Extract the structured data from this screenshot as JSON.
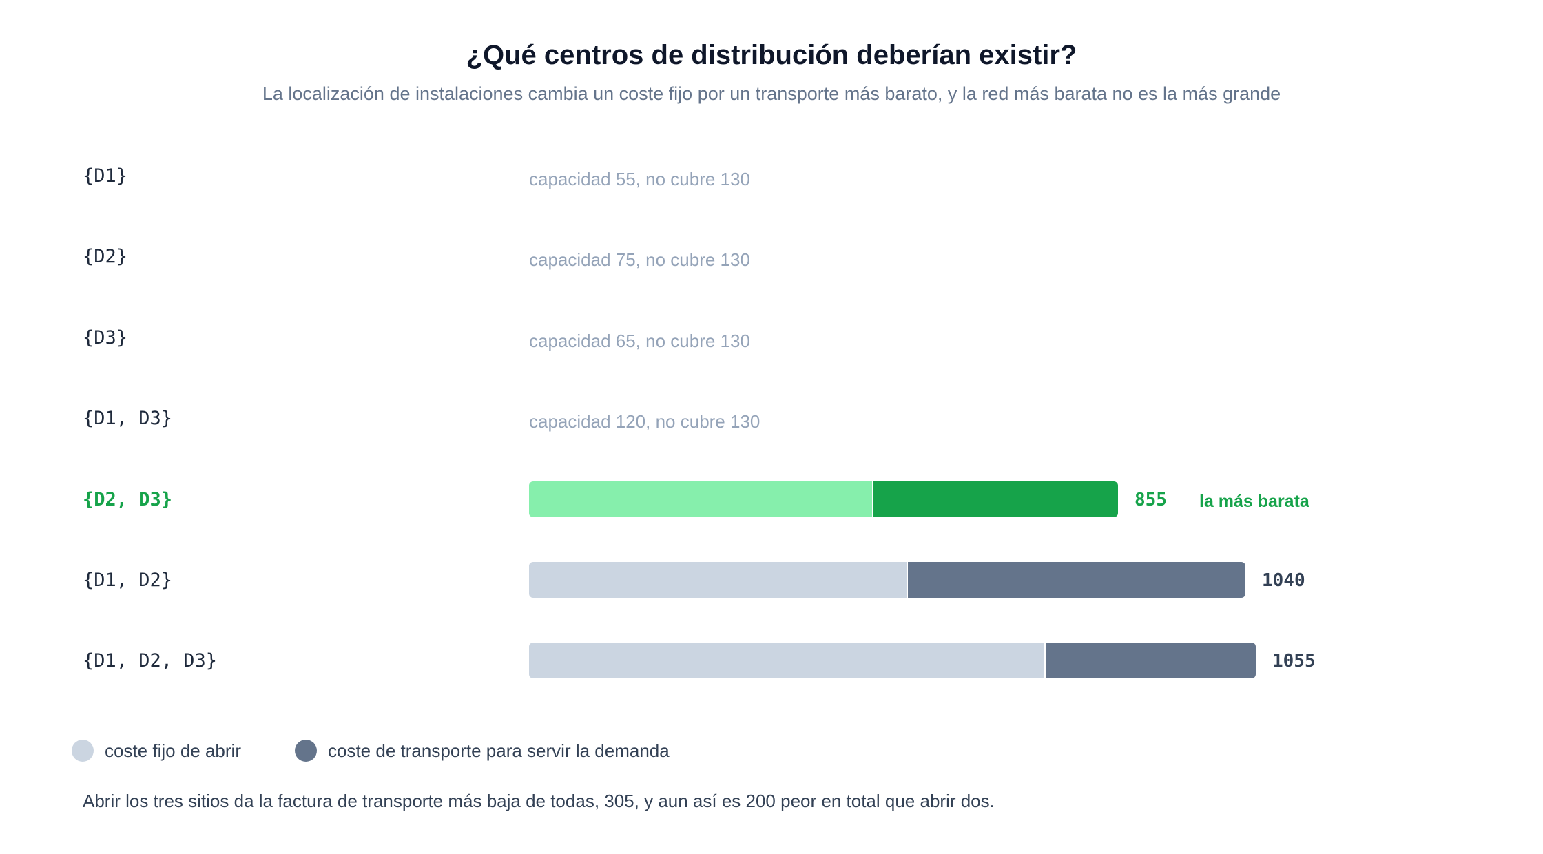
{
  "colors": {
    "fixed": "#cbd5e1",
    "transport": "#64748b",
    "fixed_best": "#86efac",
    "transport_best": "#16a34a"
  },
  "header": {
    "title": "¿Qué centros de distribución deberían existir?",
    "subtitle": "La localización de instalaciones cambia un coste fijo por un transporte más barato, y la red más barata no es la más grande"
  },
  "legend": {
    "fixed_label": "coste fijo de abrir",
    "transport_label": "coste de transporte para servir la demanda"
  },
  "footnote": "Abrir los tres sitios da la factura de transporte más baja de todas, 305, y aun así es 200 peor en total que abrir dos.",
  "chart_data": {
    "type": "bar",
    "orientation": "horizontal",
    "stacked": true,
    "xlim": [
      0,
      1100
    ],
    "categories": [
      "{D1}",
      "{D2}",
      "{D3}",
      "{D1, D3}",
      "{D2, D3}",
      "{D1, D2}",
      "{D1, D2, D3}"
    ],
    "series": [
      {
        "name": "coste fijo de abrir",
        "values": [
          null,
          null,
          null,
          null,
          500,
          550,
          750
        ]
      },
      {
        "name": "coste de transporte para servir la demanda",
        "values": [
          null,
          null,
          null,
          null,
          355,
          490,
          305
        ]
      }
    ],
    "totals": [
      null,
      null,
      null,
      null,
      "855",
      "1040",
      "1055"
    ],
    "notes": [
      "capacidad 55, no cubre 130",
      "capacidad 75, no cubre 130",
      "capacidad 65, no cubre 130",
      "capacidad 120, no cubre 130",
      null,
      null,
      null
    ],
    "highlight_index": 4,
    "highlight_label": "la más barata"
  }
}
